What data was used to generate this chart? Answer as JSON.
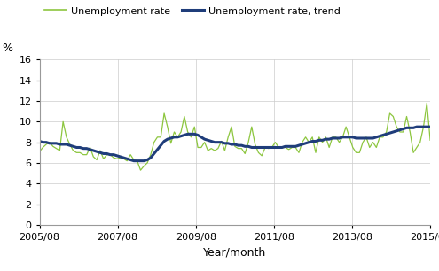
{
  "ylabel_text": "%",
  "xlabel": "Year/month",
  "ylim": [
    0,
    16
  ],
  "yticks": [
    0,
    2,
    4,
    6,
    8,
    10,
    12,
    14,
    16
  ],
  "xtick_labels": [
    "2005/08",
    "2007/08",
    "2009/08",
    "2011/08",
    "2013/08",
    "2015/08"
  ],
  "legend_entries": [
    "Unemployment rate",
    "Unemployment rate, trend"
  ],
  "line_color_rate": "#8dc63f",
  "line_color_trend": "#1f3d7a",
  "background_color": "#ffffff",
  "unemployment_rate": [
    7.1,
    7.5,
    7.8,
    8.0,
    7.6,
    7.4,
    7.2,
    10.0,
    8.5,
    7.8,
    7.2,
    7.0,
    7.0,
    6.8,
    6.8,
    7.5,
    6.6,
    6.3,
    7.2,
    6.4,
    6.8,
    6.8,
    6.5,
    6.4,
    6.5,
    6.4,
    6.2,
    6.8,
    6.3,
    6.2,
    5.3,
    5.7,
    6.0,
    6.8,
    8.0,
    8.5,
    8.5,
    10.8,
    9.5,
    7.9,
    9.0,
    8.5,
    9.0,
    10.5,
    9.0,
    8.5,
    9.5,
    7.5,
    7.5,
    8.0,
    7.2,
    7.4,
    7.2,
    7.4,
    8.1,
    7.2,
    8.5,
    9.5,
    7.6,
    7.4,
    7.4,
    6.9,
    8.0,
    9.5,
    7.8,
    7.0,
    6.7,
    7.5,
    7.4,
    7.5,
    8.0,
    7.5,
    7.5,
    7.5,
    7.3,
    7.5,
    7.5,
    7.0,
    8.0,
    8.5,
    8.0,
    8.5,
    7.0,
    8.5,
    8.0,
    8.5,
    7.5,
    8.5,
    8.5,
    8.0,
    8.5,
    9.5,
    8.5,
    7.5,
    7.0,
    7.0,
    8.0,
    8.5,
    7.5,
    8.0,
    7.5,
    8.5,
    8.5,
    9.0,
    10.8,
    10.5,
    9.5,
    9.0,
    9.0,
    10.5,
    9.0,
    7.0,
    7.5,
    8.0,
    9.5,
    11.8,
    8.2
  ],
  "unemployment_trend": [
    8.1,
    8.0,
    8.0,
    7.9,
    7.9,
    7.9,
    7.8,
    7.8,
    7.8,
    7.7,
    7.6,
    7.5,
    7.5,
    7.4,
    7.4,
    7.3,
    7.2,
    7.1,
    7.0,
    6.9,
    6.9,
    6.8,
    6.8,
    6.7,
    6.6,
    6.5,
    6.4,
    6.3,
    6.2,
    6.2,
    6.2,
    6.2,
    6.3,
    6.5,
    6.9,
    7.3,
    7.7,
    8.1,
    8.3,
    8.4,
    8.5,
    8.5,
    8.6,
    8.7,
    8.8,
    8.8,
    8.8,
    8.7,
    8.5,
    8.3,
    8.2,
    8.1,
    8.0,
    8.0,
    8.0,
    7.9,
    7.9,
    7.8,
    7.8,
    7.7,
    7.7,
    7.6,
    7.6,
    7.5,
    7.5,
    7.5,
    7.5,
    7.5,
    7.5,
    7.5,
    7.5,
    7.5,
    7.5,
    7.6,
    7.6,
    7.6,
    7.6,
    7.7,
    7.8,
    7.9,
    8.0,
    8.1,
    8.1,
    8.2,
    8.2,
    8.3,
    8.3,
    8.4,
    8.4,
    8.4,
    8.5,
    8.5,
    8.5,
    8.5,
    8.4,
    8.4,
    8.4,
    8.4,
    8.4,
    8.4,
    8.5,
    8.6,
    8.7,
    8.8,
    8.9,
    9.0,
    9.1,
    9.2,
    9.3,
    9.4,
    9.4,
    9.4,
    9.5,
    9.5,
    9.5,
    9.5,
    9.5
  ]
}
